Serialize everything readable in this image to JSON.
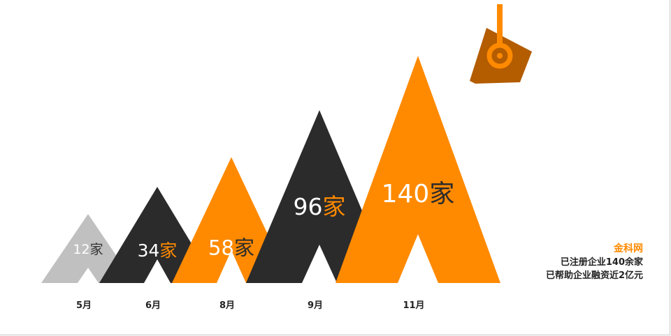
{
  "chart_data": {
    "type": "bar",
    "categories": [
      "5月",
      "6月",
      "8月",
      "9月",
      "11月"
    ],
    "values": [
      12,
      34,
      58,
      96,
      140
    ],
    "unit": "家",
    "data_labels": [
      "12家",
      "34家",
      "58家",
      "96家",
      "140家"
    ],
    "title": "",
    "xlabel": "",
    "ylabel": "",
    "ylim": [
      0,
      140
    ],
    "grid": false,
    "legend": "none",
    "colors": [
      "#c0c0c0",
      "#2b2b2b",
      "#ff8a00",
      "#2b2b2b",
      "#ff8a00"
    ],
    "label_number_colors": [
      "#ffffff",
      "#ffffff",
      "#ffffff",
      "#ffffff",
      "#ffffff"
    ],
    "label_unit_colors": [
      "#333333",
      "#ff8a00",
      "#2b2b2b",
      "#ff8a00",
      "#2b2b2b"
    ]
  },
  "sidebar": {
    "brand": "金科网",
    "line1": "已注册企业140余家",
    "line2": "已帮助企业融资近2亿元"
  },
  "logo": {
    "icon": "hook-flag-icon",
    "colors": [
      "#b35c00",
      "#ff8a00"
    ]
  }
}
